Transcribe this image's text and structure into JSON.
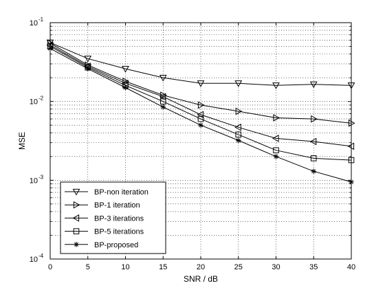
{
  "chart_data": {
    "type": "line",
    "xlabel": "SNR / dB",
    "ylabel": "MSE",
    "xscale": "linear",
    "yscale": "log",
    "xlim": [
      0,
      40
    ],
    "ylim": [
      0.0001,
      0.1
    ],
    "xticks": [
      0,
      5,
      10,
      15,
      20,
      25,
      30,
      35,
      40
    ],
    "xtick_labels": [
      "0",
      "5",
      "10",
      "15",
      "20",
      "25",
      "30",
      "35",
      "40"
    ],
    "yticks": [
      {
        "value": 0.0001,
        "base": "10",
        "exp": "-4"
      },
      {
        "value": 0.001,
        "base": "10",
        "exp": "-3"
      },
      {
        "value": 0.01,
        "base": "10",
        "exp": "-2"
      },
      {
        "value": 0.1,
        "base": "10",
        "exp": "-1"
      }
    ],
    "grid": true,
    "legend_position": "bottom-left",
    "x": [
      0,
      5,
      10,
      15,
      20,
      25,
      30,
      35,
      40
    ],
    "series": [
      {
        "name": "BP-non iteration",
        "marker": "triangle-down",
        "values": [
          0.056,
          0.035,
          0.026,
          0.02,
          0.017,
          0.017,
          0.016,
          0.0165,
          0.016
        ]
      },
      {
        "name": "BP-1 iteration",
        "marker": "triangle-right",
        "values": [
          0.055,
          0.029,
          0.018,
          0.012,
          0.009,
          0.0075,
          0.0062,
          0.006,
          0.0053
        ]
      },
      {
        "name": "BP-3 iterations",
        "marker": "triangle-left",
        "values": [
          0.052,
          0.028,
          0.017,
          0.0115,
          0.0068,
          0.0047,
          0.0034,
          0.0031,
          0.0027
        ]
      },
      {
        "name": "BP-5 iterations",
        "marker": "square",
        "values": [
          0.05,
          0.027,
          0.016,
          0.01,
          0.006,
          0.0038,
          0.0024,
          0.0019,
          0.0018
        ]
      },
      {
        "name": "BP-proposed",
        "marker": "star",
        "values": [
          0.047,
          0.026,
          0.015,
          0.0085,
          0.005,
          0.0032,
          0.002,
          0.0013,
          0.00095
        ]
      }
    ]
  }
}
